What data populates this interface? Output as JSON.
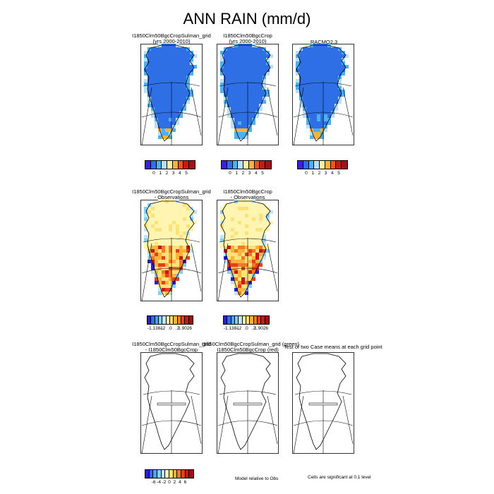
{
  "title": "ANN RAIN (mm/d)",
  "row1": {
    "panels": [
      {
        "title": [
          "I1850Clm50BgcCropSulman_grid",
          "(yrs 2000-2010)"
        ],
        "style": "rain"
      },
      {
        "title": [
          "I1850Clm50BgcCrop",
          "(yrs 2000-2010)"
        ],
        "style": "rain"
      },
      {
        "title": [
          "RACMO2.3"
        ],
        "style": "rain"
      }
    ],
    "colorbar": {
      "colors": [
        "#3b1fe0",
        "#2e6fe6",
        "#4fb0f0",
        "#b8dff5",
        "#fff3a0",
        "#fdb33a",
        "#f2541d",
        "#c81a14",
        "#9f1219"
      ],
      "labels": [
        "0",
        "1",
        "2",
        "3",
        "4",
        "5"
      ]
    }
  },
  "row2": {
    "panels": [
      {
        "title": [
          "I1850Clm50BgcCropSulman_grid",
          "- Observations"
        ],
        "style": "diff"
      },
      {
        "title": [
          "I1850Clm50BgcCrop",
          "- Observations"
        ],
        "style": "diff"
      }
    ],
    "colorbar": {
      "colors": [
        "#2a1fd9",
        "#2f6ee6",
        "#4aa5ef",
        "#87cdf5",
        "#bfe6f7",
        "#fff5b0",
        "#fde27a",
        "#fdb23b",
        "#f27a25",
        "#e2401f",
        "#c81a14",
        "#9c1018"
      ],
      "labels": [
        "-1.1381",
        "-.2",
        ".0",
        ".2",
        "1.9026"
      ]
    }
  },
  "row3": {
    "panels": [
      {
        "title": [
          "I1850Clm50BgcCropSulman_grid",
          "- I1850Clm50BgcCrop"
        ],
        "style": "blank"
      },
      {
        "title": [
          "I1850Clm50BgcCropSulman_grid (green)",
          "I1850Clm50BgcCrop (red)"
        ],
        "style": "blank"
      },
      {
        "title": [
          "Test of two Case means at each grid point"
        ],
        "style": "blank"
      }
    ],
    "colorbar": {
      "colors": [
        "#2a1fd9",
        "#2f6ee6",
        "#4aa5ef",
        "#87cdf5",
        "#bfe6f7",
        "#fff5b0",
        "#fde27a",
        "#fdb23b",
        "#f27a25",
        "#e2401f",
        "#c81a14",
        "#9c1018"
      ],
      "labels": [
        "-6",
        "-4",
        "-2",
        "0",
        "2",
        "4",
        "6"
      ]
    },
    "notes": {
      "model_relative": "Model relative to Obs",
      "significance": "Cells are significant at 0.1 level"
    }
  }
}
